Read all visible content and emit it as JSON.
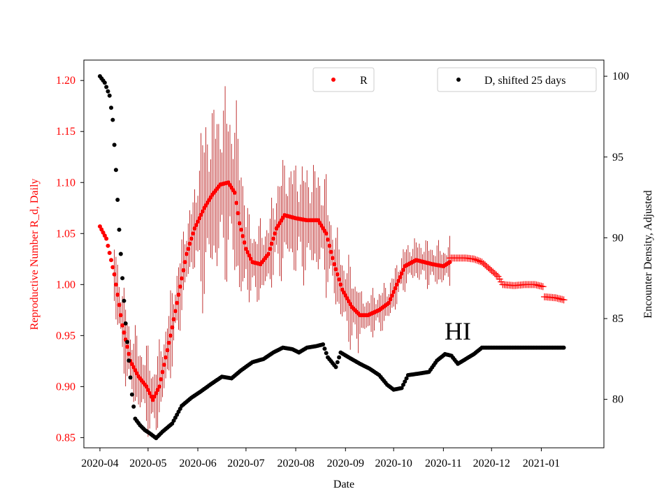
{
  "chart_data": {
    "type": "scatter",
    "xlabel": "Date",
    "ylabel_left": "Reproductive Number R_d, Daily",
    "ylabel_right": "Encounter Density, Adjusted",
    "x_range": [
      "2020-04-01",
      "2021-01-31"
    ],
    "ylim_left": [
      0.84,
      1.22
    ],
    "ylim_right": [
      77,
      101
    ],
    "x_ticks": [
      {
        "date": "2020-04-01",
        "label": "2020-04"
      },
      {
        "date": "2020-05-01",
        "label": "2020-05"
      },
      {
        "date": "2020-06-01",
        "label": "2020-06"
      },
      {
        "date": "2020-07-01",
        "label": "2020-07"
      },
      {
        "date": "2020-08-01",
        "label": "2020-08"
      },
      {
        "date": "2020-09-01",
        "label": "2020-09"
      },
      {
        "date": "2020-10-01",
        "label": "2020-10"
      },
      {
        "date": "2020-11-01",
        "label": "2020-11"
      },
      {
        "date": "2020-12-01",
        "label": "2020-12"
      },
      {
        "date": "2021-01-01",
        "label": "2021-01"
      }
    ],
    "y_ticks_left": [
      {
        "value": 0.85,
        "label": "0.85"
      },
      {
        "value": 0.9,
        "label": "0.90"
      },
      {
        "value": 0.95,
        "label": "0.95"
      },
      {
        "value": 1.0,
        "label": "1.00"
      },
      {
        "value": 1.05,
        "label": "1.05"
      },
      {
        "value": 1.1,
        "label": "1.10"
      },
      {
        "value": 1.15,
        "label": "1.15"
      },
      {
        "value": 1.2,
        "label": "1.20"
      }
    ],
    "y_ticks_right": [
      {
        "value": 80,
        "label": "80"
      },
      {
        "value": 85,
        "label": "85"
      },
      {
        "value": 90,
        "label": "90"
      },
      {
        "value": 95,
        "label": "95"
      },
      {
        "value": 100,
        "label": "100"
      }
    ],
    "annotation": {
      "text": "HI",
      "date": "2020-11-10",
      "value_right": 83.7
    },
    "series": [
      {
        "name": "R",
        "axis": "left",
        "color": "#ff0000",
        "marker": "dot",
        "error_bars": true,
        "points": [
          [
            "2020-04-01",
            1.057
          ],
          [
            "2020-04-05",
            1.045
          ],
          [
            "2020-04-10",
            1.01
          ],
          [
            "2020-04-15",
            0.96
          ],
          [
            "2020-04-20",
            0.925
          ],
          [
            "2020-04-25",
            0.91
          ],
          [
            "2020-04-30",
            0.9
          ],
          [
            "2020-05-04",
            0.887
          ],
          [
            "2020-05-08",
            0.9
          ],
          [
            "2020-05-15",
            0.95
          ],
          [
            "2020-05-20",
            0.99
          ],
          [
            "2020-05-25",
            1.03
          ],
          [
            "2020-05-30",
            1.055
          ],
          [
            "2020-06-05",
            1.075
          ],
          [
            "2020-06-10",
            1.088
          ],
          [
            "2020-06-15",
            1.098
          ],
          [
            "2020-06-20",
            1.1
          ],
          [
            "2020-06-24",
            1.09
          ],
          [
            "2020-06-27",
            1.06
          ],
          [
            "2020-07-01",
            1.035
          ],
          [
            "2020-07-05",
            1.022
          ],
          [
            "2020-07-10",
            1.02
          ],
          [
            "2020-07-15",
            1.03
          ],
          [
            "2020-07-20",
            1.055
          ],
          [
            "2020-07-25",
            1.068
          ],
          [
            "2020-08-01",
            1.065
          ],
          [
            "2020-08-08",
            1.063
          ],
          [
            "2020-08-15",
            1.063
          ],
          [
            "2020-08-20",
            1.05
          ],
          [
            "2020-08-25",
            1.02
          ],
          [
            "2020-08-30",
            0.995
          ],
          [
            "2020-09-05",
            0.978
          ],
          [
            "2020-09-10",
            0.97
          ],
          [
            "2020-09-15",
            0.97
          ],
          [
            "2020-09-22",
            0.975
          ],
          [
            "2020-09-28",
            0.982
          ],
          [
            "2020-10-03",
            1.0
          ],
          [
            "2020-10-08",
            1.018
          ],
          [
            "2020-10-15",
            1.024
          ],
          [
            "2020-10-25",
            1.02
          ],
          [
            "2020-11-01",
            1.018
          ],
          [
            "2020-11-05",
            1.022
          ]
        ],
        "cross_points": [
          [
            "2020-11-05",
            1.026
          ],
          [
            "2020-11-15",
            1.026
          ],
          [
            "2020-11-20",
            1.025
          ],
          [
            "2020-11-25",
            1.022
          ],
          [
            "2020-11-30",
            1.015
          ],
          [
            "2020-12-05",
            1.008
          ],
          [
            "2020-12-08",
            1.0
          ],
          [
            "2020-12-15",
            0.999
          ],
          [
            "2020-12-22",
            1.0
          ],
          [
            "2020-12-28",
            1.0
          ],
          [
            "2021-01-02",
            0.998
          ],
          [
            "2021-01-03",
            0.988
          ],
          [
            "2021-01-10",
            0.987
          ],
          [
            "2021-01-15",
            0.985
          ]
        ]
      },
      {
        "name": "D, shifted 25 days",
        "axis": "right",
        "color": "#000000",
        "marker": "dot",
        "points": [
          [
            "2020-04-01",
            100.0
          ],
          [
            "2020-04-04",
            99.6
          ],
          [
            "2020-04-07",
            98.8
          ],
          [
            "2020-04-09",
            97.3
          ],
          [
            "2020-04-11",
            94.2
          ],
          [
            "2020-04-13",
            90.5
          ],
          [
            "2020-04-15",
            87.5
          ],
          [
            "2020-04-17",
            84.7
          ],
          [
            "2020-04-19",
            82.4
          ],
          [
            "2020-04-21",
            80.3
          ],
          [
            "2020-04-23",
            78.8
          ],
          [
            "2020-04-26",
            78.4
          ],
          [
            "2020-04-29",
            78.1
          ],
          [
            "2020-05-02",
            77.9
          ],
          [
            "2020-05-06",
            77.6
          ],
          [
            "2020-05-10",
            78.0
          ],
          [
            "2020-05-16",
            78.5
          ],
          [
            "2020-05-22",
            79.6
          ],
          [
            "2020-05-28",
            80.1
          ],
          [
            "2020-06-03",
            80.5
          ],
          [
            "2020-06-10",
            81.0
          ],
          [
            "2020-06-16",
            81.4
          ],
          [
            "2020-06-22",
            81.3
          ],
          [
            "2020-06-28",
            81.8
          ],
          [
            "2020-07-05",
            82.3
          ],
          [
            "2020-07-12",
            82.5
          ],
          [
            "2020-07-18",
            82.9
          ],
          [
            "2020-07-24",
            83.2
          ],
          [
            "2020-07-30",
            83.1
          ],
          [
            "2020-08-03",
            82.9
          ],
          [
            "2020-08-08",
            83.2
          ],
          [
            "2020-08-14",
            83.3
          ],
          [
            "2020-08-18",
            83.4
          ],
          [
            "2020-08-21",
            82.6
          ],
          [
            "2020-08-26",
            82.0
          ],
          [
            "2020-08-29",
            82.9
          ],
          [
            "2020-09-03",
            82.6
          ],
          [
            "2020-09-10",
            82.2
          ],
          [
            "2020-09-16",
            81.9
          ],
          [
            "2020-09-22",
            81.5
          ],
          [
            "2020-09-27",
            80.9
          ],
          [
            "2020-10-01",
            80.6
          ],
          [
            "2020-10-06",
            80.7
          ],
          [
            "2020-10-10",
            81.5
          ],
          [
            "2020-10-17",
            81.6
          ],
          [
            "2020-10-23",
            81.7
          ],
          [
            "2020-10-28",
            82.4
          ],
          [
            "2020-11-02",
            82.8
          ],
          [
            "2020-11-06",
            82.7
          ],
          [
            "2020-11-10",
            82.2
          ],
          [
            "2020-11-15",
            82.5
          ],
          [
            "2020-11-20",
            82.8
          ],
          [
            "2020-11-25",
            83.2
          ],
          [
            "2020-12-01",
            83.2
          ],
          [
            "2020-12-15",
            83.2
          ],
          [
            "2021-01-01",
            83.2
          ],
          [
            "2021-01-15",
            83.2
          ]
        ]
      }
    ],
    "legends": [
      {
        "series": "R",
        "position": "top-center"
      },
      {
        "series": "D, shifted 25 days",
        "position": "top-right"
      }
    ]
  }
}
